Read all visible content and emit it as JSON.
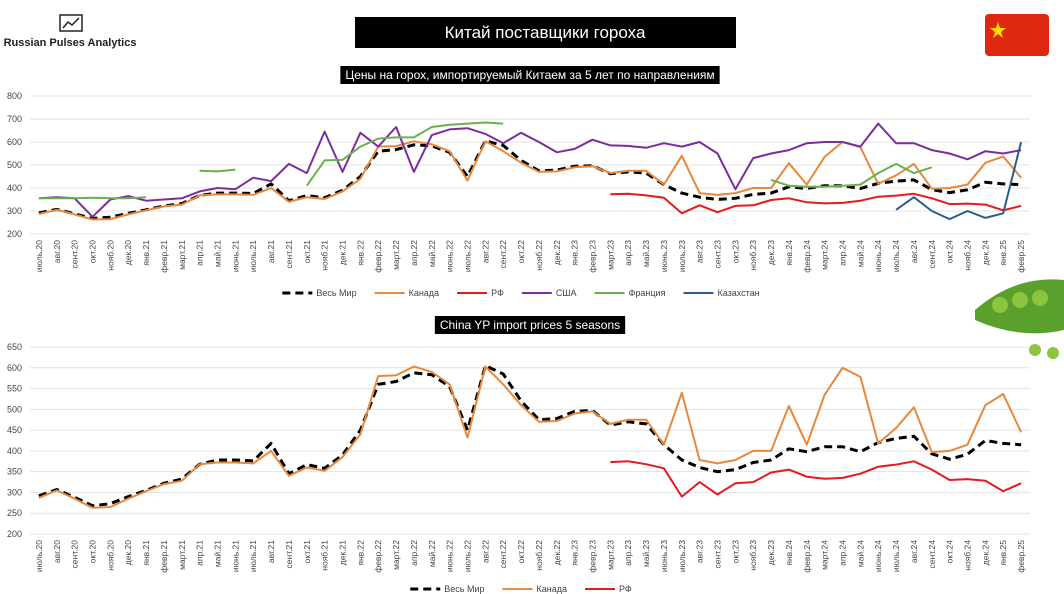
{
  "header": {
    "brand": "Russian Pulses Analytics",
    "title": "Китай поставщики гороха"
  },
  "chart_data": [
    {
      "type": "line",
      "title": "Цены на горох, импортируемый Китаем за 5 лет по направлениям",
      "categories": [
        "июль.20",
        "авг.20",
        "сент.20",
        "окт.20",
        "нояб.20",
        "дек.20",
        "янв.21",
        "февр.21",
        "март.21",
        "апр.21",
        "май.21",
        "июнь.21",
        "июль.21",
        "авг.21",
        "сент.21",
        "окт.21",
        "нояб.21",
        "дек.21",
        "янв.22",
        "февр.22",
        "март.22",
        "апр.22",
        "май.22",
        "июнь.22",
        "июль.22",
        "авг.22",
        "сент.22",
        "окт.22",
        "нояб.22",
        "дек.22",
        "янв.23",
        "февр.23",
        "март.23",
        "апр.23",
        "май.23",
        "июнь.23",
        "июль.23",
        "авг.23",
        "сент.23",
        "окт.23",
        "нояб.23",
        "дек.23",
        "янв.24",
        "февр.24",
        "март.24",
        "апр.24",
        "май.24",
        "июнь.24",
        "июль.24",
        "авг.24",
        "сент.24",
        "окт.24",
        "нояб.24",
        "дек.24",
        "янв.25",
        "февр.25"
      ],
      "ylim": [
        200,
        800
      ],
      "yticks": [
        200,
        300,
        400,
        500,
        600,
        700,
        800
      ],
      "grid": true,
      "legend": "bottom",
      "series": [
        {
          "name": "Весь Мир",
          "color": "#000000",
          "dash": true,
          "values": [
            292,
            307,
            288,
            268,
            273,
            290,
            305,
            322,
            332,
            368,
            378,
            378,
            376,
            418,
            345,
            367,
            358,
            390,
            450,
            560,
            567,
            588,
            583,
            555,
            450,
            605,
            585,
            520,
            475,
            478,
            495,
            497,
            462,
            470,
            465,
            415,
            378,
            360,
            350,
            355,
            372,
            378,
            405,
            398,
            410,
            410,
            398,
            420,
            430,
            435,
            393,
            380,
            392,
            425,
            418,
            415
          ]
        },
        {
          "name": "Канада",
          "color": "#e8883a",
          "values": [
            287,
            305,
            285,
            263,
            265,
            285,
            303,
            320,
            328,
            368,
            372,
            372,
            370,
            400,
            340,
            360,
            352,
            385,
            440,
            580,
            582,
            603,
            590,
            560,
            432,
            603,
            560,
            510,
            470,
            472,
            490,
            495,
            465,
            475,
            475,
            415,
            540,
            378,
            370,
            378,
            400,
            400,
            508,
            415,
            535,
            600,
            578,
            418,
            455,
            505,
            397,
            400,
            415,
            510,
            537,
            445
          ]
        },
        {
          "name": "РФ",
          "color": "#e41a1c",
          "values": [
            null,
            null,
            null,
            null,
            null,
            null,
            null,
            null,
            null,
            null,
            null,
            null,
            null,
            null,
            null,
            null,
            null,
            null,
            null,
            null,
            null,
            null,
            null,
            null,
            null,
            null,
            null,
            null,
            null,
            null,
            null,
            null,
            373,
            375,
            368,
            358,
            290,
            325,
            295,
            322,
            325,
            348,
            355,
            338,
            333,
            335,
            345,
            362,
            367,
            375,
            355,
            330,
            332,
            328,
            303,
            322
          ]
        },
        {
          "name": "США",
          "color": "#7b2d9e",
          "values": [
            355,
            360,
            355,
            275,
            350,
            365,
            345,
            350,
            355,
            385,
            400,
            395,
            445,
            430,
            505,
            465,
            645,
            470,
            640,
            580,
            665,
            470,
            630,
            655,
            660,
            635,
            595,
            640,
            600,
            555,
            570,
            610,
            585,
            583,
            575,
            595,
            580,
            600,
            550,
            395,
            530,
            550,
            565,
            595,
            600,
            600,
            580,
            680,
            595,
            595,
            565,
            550,
            525,
            560,
            550,
            565
          ]
        },
        {
          "name": "Франция",
          "color": "#6ab04c",
          "values": [
            355,
            355,
            355,
            358,
            355,
            355,
            360,
            null,
            null,
            475,
            472,
            480,
            null,
            null,
            null,
            410,
            520,
            522,
            580,
            615,
            620,
            620,
            665,
            675,
            680,
            685,
            680,
            null,
            null,
            null,
            null,
            null,
            null,
            null,
            null,
            null,
            null,
            null,
            null,
            null,
            null,
            435,
            410,
            405,
            405,
            410,
            415,
            465,
            505,
            465,
            490,
            null,
            null,
            null,
            null,
            null
          ]
        },
        {
          "name": "Казахстан",
          "color": "#2c5d8a",
          "values": [
            null,
            null,
            null,
            null,
            null,
            null,
            null,
            null,
            null,
            null,
            null,
            null,
            null,
            null,
            null,
            null,
            null,
            null,
            null,
            null,
            null,
            null,
            null,
            null,
            null,
            null,
            null,
            null,
            null,
            null,
            null,
            null,
            null,
            null,
            null,
            null,
            null,
            null,
            null,
            null,
            null,
            null,
            null,
            null,
            null,
            null,
            null,
            null,
            305,
            360,
            300,
            265,
            300,
            270,
            290,
            600
          ]
        }
      ]
    },
    {
      "type": "line",
      "title": "China YP import prices 5 seasons",
      "categories": [
        "июль.20",
        "авг.20",
        "сент.20",
        "окт.20",
        "нояб.20",
        "дек.20",
        "янв.21",
        "февр.21",
        "март.21",
        "апр.21",
        "май.21",
        "июнь.21",
        "июль.21",
        "авг.21",
        "сент.21",
        "окт.21",
        "нояб.21",
        "дек.21",
        "янв.22",
        "февр.22",
        "март.22",
        "апр.22",
        "май.22",
        "июнь.22",
        "июль.22",
        "авг.22",
        "сент.22",
        "окт.22",
        "нояб.22",
        "дек.22",
        "янв.23",
        "февр.23",
        "март.23",
        "апр.23",
        "май.23",
        "июнь.23",
        "июль.23",
        "авг.23",
        "сент.23",
        "окт.23",
        "нояб.23",
        "дек.23",
        "янв.24",
        "февр.24",
        "март.24",
        "апр.24",
        "май.24",
        "июнь.24",
        "июль.24",
        "авг.24",
        "сент.24",
        "окт.24",
        "нояб.24",
        "дек.24",
        "янв.25",
        "февр.25"
      ],
      "ylim": [
        200,
        650
      ],
      "yticks": [
        200,
        250,
        300,
        350,
        400,
        450,
        500,
        550,
        600,
        650
      ],
      "grid": true,
      "legend": "bottom",
      "series": [
        {
          "name": "Весь Мир",
          "color": "#000000",
          "dash": true,
          "values": [
            292,
            307,
            288,
            268,
            273,
            290,
            305,
            322,
            332,
            368,
            378,
            378,
            376,
            418,
            345,
            367,
            358,
            390,
            450,
            560,
            567,
            588,
            583,
            555,
            450,
            605,
            585,
            520,
            475,
            478,
            495,
            497,
            462,
            470,
            465,
            415,
            378,
            360,
            350,
            355,
            372,
            378,
            405,
            398,
            410,
            410,
            398,
            420,
            430,
            435,
            393,
            380,
            392,
            425,
            418,
            415
          ]
        },
        {
          "name": "Канада",
          "color": "#e8883a",
          "values": [
            287,
            305,
            285,
            263,
            265,
            285,
            303,
            320,
            328,
            368,
            372,
            372,
            370,
            400,
            340,
            360,
            352,
            385,
            440,
            580,
            582,
            603,
            590,
            560,
            432,
            603,
            560,
            510,
            470,
            472,
            490,
            495,
            465,
            475,
            475,
            415,
            540,
            378,
            370,
            378,
            400,
            400,
            508,
            415,
            535,
            600,
            578,
            418,
            455,
            505,
            397,
            400,
            415,
            510,
            537,
            445
          ]
        },
        {
          "name": "РФ",
          "color": "#e41a1c",
          "values": [
            null,
            null,
            null,
            null,
            null,
            null,
            null,
            null,
            null,
            null,
            null,
            null,
            null,
            null,
            null,
            null,
            null,
            null,
            null,
            null,
            null,
            null,
            null,
            null,
            null,
            null,
            null,
            null,
            null,
            null,
            null,
            null,
            373,
            375,
            368,
            358,
            290,
            325,
            295,
            322,
            325,
            348,
            355,
            338,
            333,
            335,
            345,
            362,
            367,
            375,
            355,
            330,
            332,
            328,
            303,
            322
          ]
        }
      ]
    }
  ]
}
